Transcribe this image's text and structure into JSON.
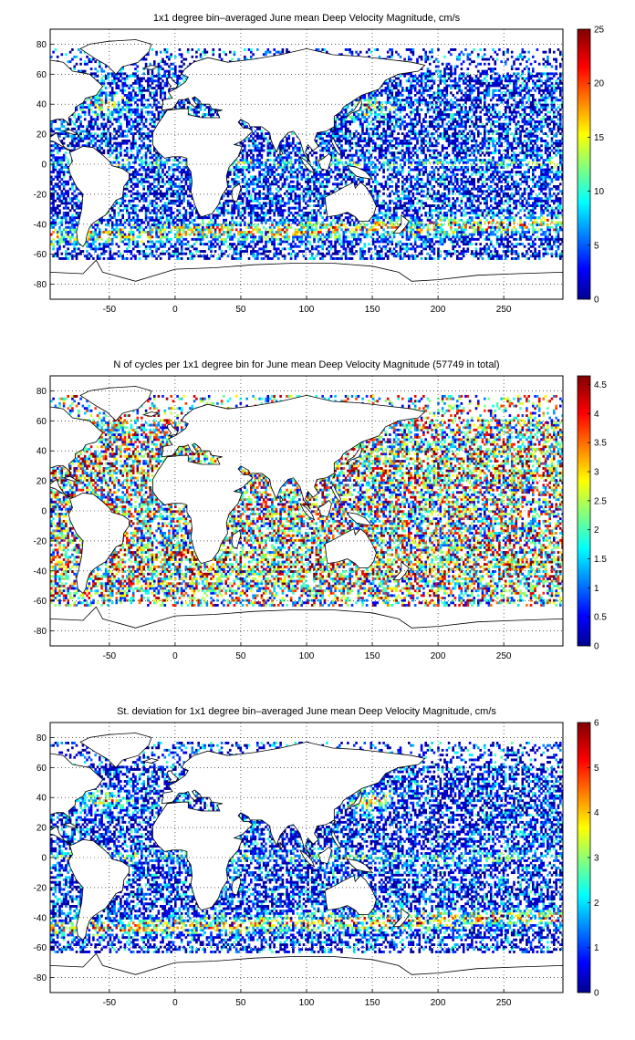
{
  "panels": [
    {
      "title": "1x1 degree bin–averaged June mean Deep Velocity Magnitude, cm/s",
      "xticks": [
        "-50",
        "0",
        "50",
        "100",
        "150",
        "200",
        "250"
      ],
      "yticks": [
        "80",
        "60",
        "40",
        "20",
        "0",
        "-20",
        "-40",
        "-60",
        "-80"
      ],
      "colorbar_ticks": [
        "25",
        "20",
        "15",
        "10",
        "5",
        "0"
      ],
      "colorbar_range": [
        0,
        25
      ],
      "colormap": "jet"
    },
    {
      "title": "N of cycles per 1x1 degree bin for June mean Deep Velocity Magnitude (57749 in total)",
      "xticks": [
        "-50",
        "0",
        "50",
        "100",
        "150",
        "200",
        "250"
      ],
      "yticks": [
        "80",
        "60",
        "40",
        "20",
        "0",
        "-20",
        "-40",
        "-60",
        "-80"
      ],
      "colorbar_ticks": [
        "4.5",
        "4",
        "3.5",
        "3",
        "2.5",
        "2",
        "1.5",
        "1",
        "0.5",
        "0"
      ],
      "colorbar_range": [
        0,
        4.65
      ],
      "colormap": "jet"
    },
    {
      "title": "St. deviation for 1x1 degree bin–averaged June mean Deep Velocity Magnitude, cm/s",
      "xticks": [
        "-50",
        "0",
        "50",
        "100",
        "150",
        "200",
        "250"
      ],
      "yticks": [
        "80",
        "60",
        "40",
        "20",
        "0",
        "-20",
        "-40",
        "-60",
        "-80"
      ],
      "colorbar_ticks": [
        "6",
        "5",
        "4",
        "3",
        "2",
        "1",
        "0"
      ],
      "colorbar_range": [
        0,
        6
      ],
      "colormap": "jet"
    }
  ],
  "map_extent": {
    "lon": [
      -95,
      295
    ],
    "lat": [
      -90,
      90
    ]
  },
  "colors": {
    "land_outline": "#000000",
    "grid": "#000000",
    "background": "#ffffff"
  }
}
